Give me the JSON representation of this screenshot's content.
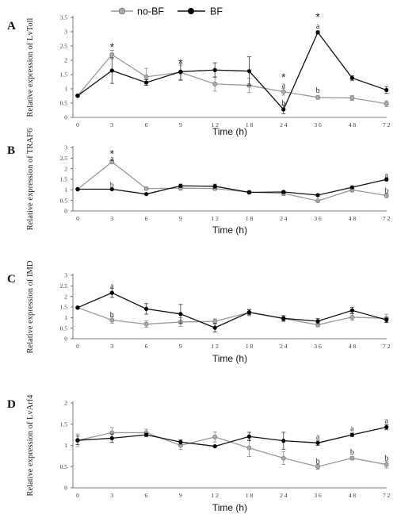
{
  "legend": [
    {
      "name": "no-BF",
      "color": "#999999",
      "marker_fill": "#aaaaaa"
    },
    {
      "name": "BF",
      "color": "#111111",
      "marker_fill": "#000000"
    }
  ],
  "chart_data": [
    {
      "panel": "A",
      "type": "line",
      "xlabel": "Time (h)",
      "ylabel": "Relative expression of LvToll",
      "categories": [
        "0",
        "3",
        "6",
        "9",
        "1 2",
        "1 8",
        "2 4",
        "3 6",
        "4 8",
        "7 2"
      ],
      "ylim": [
        0,
        3.5
      ],
      "yticks": [
        "0",
        "0.5",
        "1",
        "1.5",
        "2",
        "2.5",
        "3",
        "3.5"
      ],
      "series": [
        {
          "name": "no-BF",
          "values": [
            0.76,
            2.2,
            1.42,
            1.58,
            1.17,
            1.12,
            0.9,
            0.7,
            0.68,
            0.48
          ],
          "err": [
            0.03,
            0.15,
            0.3,
            0.25,
            0.25,
            0.25,
            0.12,
            0.06,
            0.08,
            0.1
          ]
        },
        {
          "name": "BF",
          "values": [
            0.76,
            1.64,
            1.22,
            1.6,
            1.66,
            1.62,
            0.28,
            2.98,
            1.38,
            0.96
          ],
          "err": [
            0.03,
            0.45,
            0.1,
            0.3,
            0.25,
            0.5,
            0.15,
            0.05,
            0.08,
            0.12
          ]
        }
      ],
      "annotations": [
        {
          "x": "3",
          "text": "*",
          "y": 2.5
        },
        {
          "x": "9",
          "text": "*",
          "y": 1.95
        },
        {
          "x": "2 4",
          "text": "*",
          "y": 1.45
        },
        {
          "x": "2 4",
          "text": "a",
          "y": 1.12
        },
        {
          "x": "2 4",
          "text": "b",
          "y": 0.5
        },
        {
          "x": "3 6",
          "text": "*",
          "y": 3.55
        },
        {
          "x": "3 6",
          "text": "a",
          "y": 3.2
        },
        {
          "x": "3 6",
          "text": "b",
          "y": 0.95
        }
      ]
    },
    {
      "panel": "B",
      "type": "line",
      "xlabel": "Time (h)",
      "ylabel": "Relative expression of TRAF6",
      "categories": [
        "0",
        "3",
        "6",
        "9",
        "1 2",
        "1 8",
        "2 4",
        "3 6",
        "4 8",
        "7 2"
      ],
      "ylim": [
        0,
        3
      ],
      "yticks": [
        "0",
        "0.5",
        "1",
        "1.5",
        "2",
        "2.5",
        "3"
      ],
      "series": [
        {
          "name": "no-BF",
          "values": [
            1.03,
            2.32,
            1.06,
            1.08,
            1.06,
            0.89,
            0.83,
            0.48,
            1.0,
            0.73
          ],
          "err": [
            0.03,
            0.08,
            0.06,
            0.1,
            0.08,
            0.06,
            0.1,
            0.05,
            0.1,
            0.1
          ]
        },
        {
          "name": "BF",
          "values": [
            1.03,
            1.03,
            0.8,
            1.19,
            1.17,
            0.88,
            0.9,
            0.75,
            1.12,
            1.49
          ],
          "err": [
            0.03,
            0.04,
            0.04,
            0.08,
            0.1,
            0.05,
            0.06,
            0.04,
            0.05,
            0.06
          ]
        }
      ],
      "annotations": [
        {
          "x": "3",
          "text": "*",
          "y": 2.75
        },
        {
          "x": "3",
          "text": "a",
          "y": 2.48
        },
        {
          "x": "3",
          "text": "b",
          "y": 1.22
        },
        {
          "x": "7 2",
          "text": "a",
          "y": 1.68
        },
        {
          "x": "7 2",
          "text": "b",
          "y": 0.95
        }
      ]
    },
    {
      "panel": "C",
      "type": "line",
      "xlabel": "Time (h)",
      "ylabel": "Relative expression of IMD",
      "categories": [
        "0",
        "3",
        "6",
        "9",
        "1 2",
        "1 8",
        "2 4",
        "3 6",
        "4 8",
        "7 2"
      ],
      "ylim": [
        0,
        3
      ],
      "yticks": [
        "0",
        "0.5",
        "1",
        "1.5",
        "2",
        "2.5",
        "3"
      ],
      "series": [
        {
          "name": "no-BF",
          "values": [
            1.47,
            0.88,
            0.69,
            0.79,
            0.82,
            1.24,
            0.95,
            0.66,
            1.02,
            0.96
          ],
          "err": [
            0.03,
            0.15,
            0.15,
            0.2,
            0.12,
            0.15,
            0.15,
            0.1,
            0.15,
            0.2
          ]
        },
        {
          "name": "BF",
          "values": [
            1.47,
            2.17,
            1.41,
            1.17,
            0.52,
            1.25,
            0.96,
            0.83,
            1.34,
            0.89
          ],
          "err": [
            0.03,
            0.22,
            0.25,
            0.45,
            0.2,
            0.12,
            0.12,
            0.12,
            0.15,
            0.12
          ]
        }
      ],
      "annotations": [
        {
          "x": "3",
          "text": "a",
          "y": 2.5
        },
        {
          "x": "3",
          "text": "b",
          "y": 1.12
        }
      ]
    },
    {
      "panel": "D",
      "type": "line",
      "xlabel": "Time (h)",
      "ylabel": "Relative expression of LvArf4",
      "categories": [
        "0",
        "3",
        "6",
        "9",
        "1 2",
        "1 8",
        "2 4",
        "3 6",
        "4 8",
        "7 2"
      ],
      "ylim": [
        0,
        2
      ],
      "yticks": [
        "0",
        "0.5",
        "1",
        "1.5",
        "2"
      ],
      "series": [
        {
          "name": "no-BF",
          "values": [
            1.12,
            1.3,
            1.3,
            1.0,
            1.2,
            0.94,
            0.7,
            0.5,
            0.7,
            0.55
          ],
          "err": [
            0.15,
            0.12,
            0.08,
            0.1,
            0.12,
            0.2,
            0.15,
            0.06,
            0.04,
            0.08
          ]
        },
        {
          "name": "BF",
          "values": [
            1.12,
            1.17,
            1.25,
            1.08,
            0.98,
            1.21,
            1.11,
            1.06,
            1.25,
            1.43
          ],
          "err": [
            0.1,
            0.1,
            0.04,
            0.05,
            0.02,
            0.1,
            0.2,
            0.06,
            0.04,
            0.06
          ]
        }
      ],
      "annotations": [
        {
          "x": "3 6",
          "text": "a",
          "y": 1.21
        },
        {
          "x": "3 6",
          "text": "b",
          "y": 0.63
        },
        {
          "x": "4 8",
          "text": "a",
          "y": 1.39
        },
        {
          "x": "4 8",
          "text": "b",
          "y": 0.84
        },
        {
          "x": "7 2",
          "text": "a",
          "y": 1.58
        },
        {
          "x": "7 2",
          "text": "b",
          "y": 0.7
        }
      ]
    }
  ]
}
